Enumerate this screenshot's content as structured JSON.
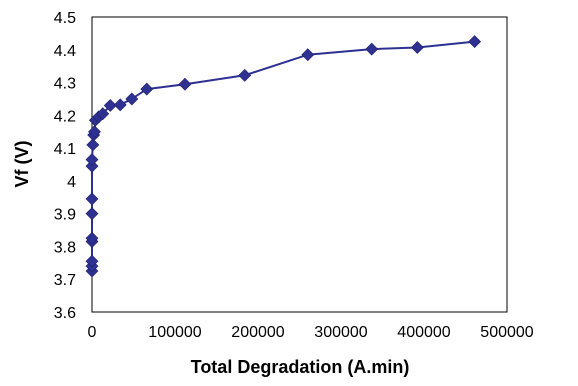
{
  "chart_data": {
    "type": "line",
    "xlabel": "Total Degradation (A.min)",
    "ylabel": "Vf (V)",
    "xlim": [
      0,
      500000
    ],
    "ylim": [
      3.6,
      4.5
    ],
    "x_ticks": [
      0,
      100000,
      200000,
      300000,
      400000,
      500000
    ],
    "x_tick_labels": [
      "0",
      "100000",
      "200000",
      "300000",
      "400000",
      "500000"
    ],
    "y_ticks": [
      3.6,
      3.7,
      3.8,
      3.9,
      4.0,
      4.1,
      4.2,
      4.3,
      4.4,
      4.5
    ],
    "y_tick_labels": [
      "3.6",
      "3.7",
      "3.8",
      "3.9",
      "4",
      "4.1",
      "4.2",
      "4.3",
      "4.4",
      "4.5"
    ],
    "grid": false,
    "legend": "none",
    "series": [
      {
        "marker": "diamond",
        "color": "#2e3192",
        "points": [
          [
            0,
            3.725
          ],
          [
            0,
            3.74
          ],
          [
            0,
            3.755
          ],
          [
            0,
            3.815
          ],
          [
            0,
            3.825
          ],
          [
            0,
            3.9
          ],
          [
            0,
            3.945
          ],
          [
            0,
            4.045
          ],
          [
            0,
            4.065
          ],
          [
            1000,
            4.11
          ],
          [
            2000,
            4.14
          ],
          [
            3000,
            4.15
          ],
          [
            4000,
            4.185
          ],
          [
            8000,
            4.195
          ],
          [
            13000,
            4.205
          ],
          [
            22000,
            4.23
          ],
          [
            34000,
            4.232
          ],
          [
            48000,
            4.25
          ],
          [
            66000,
            4.28
          ],
          [
            112000,
            4.295
          ],
          [
            184000,
            4.322
          ],
          [
            260000,
            4.385
          ],
          [
            337000,
            4.402
          ],
          [
            392000,
            4.407
          ],
          [
            461000,
            4.425
          ]
        ]
      }
    ]
  }
}
